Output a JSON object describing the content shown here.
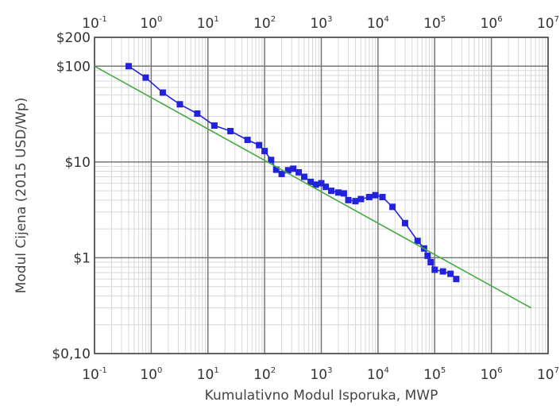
{
  "chart_data": {
    "type": "line",
    "title": "",
    "xlabel": "Kumulativno Modul Isporuka, MWP",
    "ylabel": "Modul Cijena (2015 USD/Wp)",
    "xscale": "log",
    "yscale": "log",
    "xlim": [
      0.1,
      10000000
    ],
    "ylim": [
      0.1,
      200
    ],
    "grid": true,
    "x_ticks": [
      {
        "base": "10",
        "exp": "-1"
      },
      {
        "base": "10",
        "exp": "0"
      },
      {
        "base": "10",
        "exp": "1"
      },
      {
        "base": "10",
        "exp": "2"
      },
      {
        "base": "10",
        "exp": "3"
      },
      {
        "base": "10",
        "exp": "4"
      },
      {
        "base": "10",
        "exp": "5"
      },
      {
        "base": "10",
        "exp": "6"
      },
      {
        "base": "10",
        "exp": "7"
      }
    ],
    "y_ticks": [
      {
        "label": "$0,10",
        "value": 0.1
      },
      {
        "label": "$1",
        "value": 1
      },
      {
        "label": "$10",
        "value": 10
      },
      {
        "label": "$100",
        "value": 100
      },
      {
        "label": "$200",
        "value": 200
      }
    ],
    "series": [
      {
        "color": "#2222dd",
        "marker": "square",
        "points": [
          [
            0.4,
            100
          ],
          [
            0.8,
            76
          ],
          [
            1.6,
            53
          ],
          [
            3.2,
            40
          ],
          [
            6.5,
            32
          ],
          [
            13,
            24
          ],
          [
            25,
            21
          ],
          [
            50,
            17
          ],
          [
            80,
            15
          ],
          [
            100,
            13
          ],
          [
            130,
            10.5
          ],
          [
            160,
            8.3
          ],
          [
            200,
            7.5
          ],
          [
            260,
            8.2
          ],
          [
            320,
            8.5
          ],
          [
            400,
            7.8
          ],
          [
            500,
            7
          ],
          [
            650,
            6.2
          ],
          [
            800,
            5.8
          ],
          [
            1000,
            6
          ],
          [
            1200,
            5.5
          ],
          [
            1500,
            5
          ],
          [
            2000,
            4.8
          ],
          [
            2500,
            4.7
          ],
          [
            3000,
            4
          ],
          [
            4000,
            3.9
          ],
          [
            5000,
            4.1
          ],
          [
            7000,
            4.3
          ],
          [
            9000,
            4.5
          ],
          [
            12000,
            4.3
          ],
          [
            18000,
            3.4
          ],
          [
            30000,
            2.3
          ],
          [
            50000,
            1.5
          ],
          [
            65000,
            1.25
          ],
          [
            75000,
            1.05
          ],
          [
            85000,
            0.9
          ],
          [
            100000,
            0.75
          ],
          [
            140000,
            0.72
          ],
          [
            190000,
            0.68
          ],
          [
            240000,
            0.6
          ]
        ]
      },
      {
        "color": "#44aa44",
        "marker": "none",
        "points": [
          [
            0.1,
            100
          ],
          [
            5000000,
            0.3
          ]
        ]
      }
    ]
  }
}
